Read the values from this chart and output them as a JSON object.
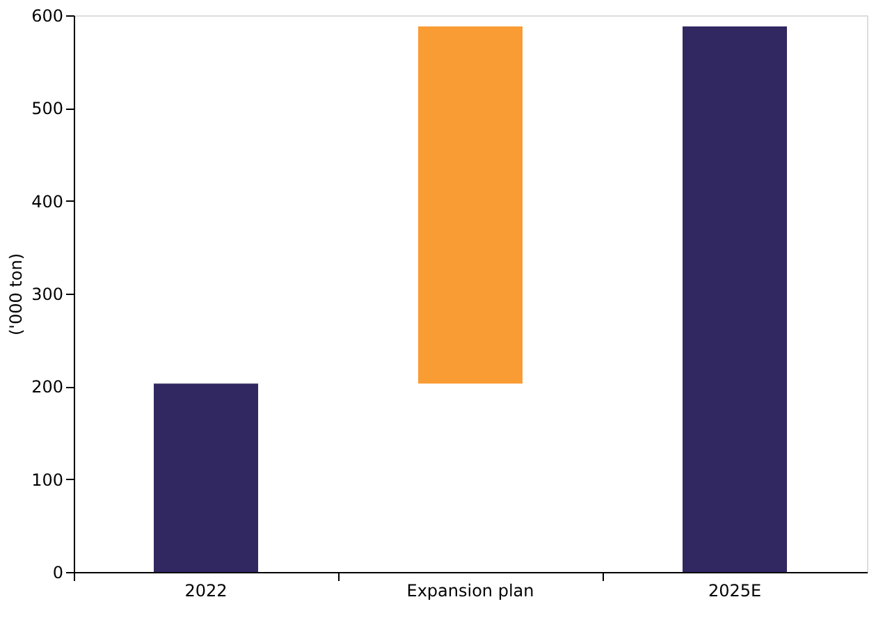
{
  "chart_data": {
    "type": "bar",
    "ylabel": "('000 ton)",
    "categories": [
      "2022",
      "Expansion plan",
      "2025E"
    ],
    "values": [
      203,
      385,
      588
    ],
    "base": [
      0,
      203,
      0
    ],
    "colors": [
      "#312862",
      "#f99c34",
      "#312862"
    ],
    "ylim": [
      0,
      600
    ],
    "yticks": [
      0,
      100,
      200,
      300,
      400,
      500,
      600
    ],
    "grid": false
  }
}
